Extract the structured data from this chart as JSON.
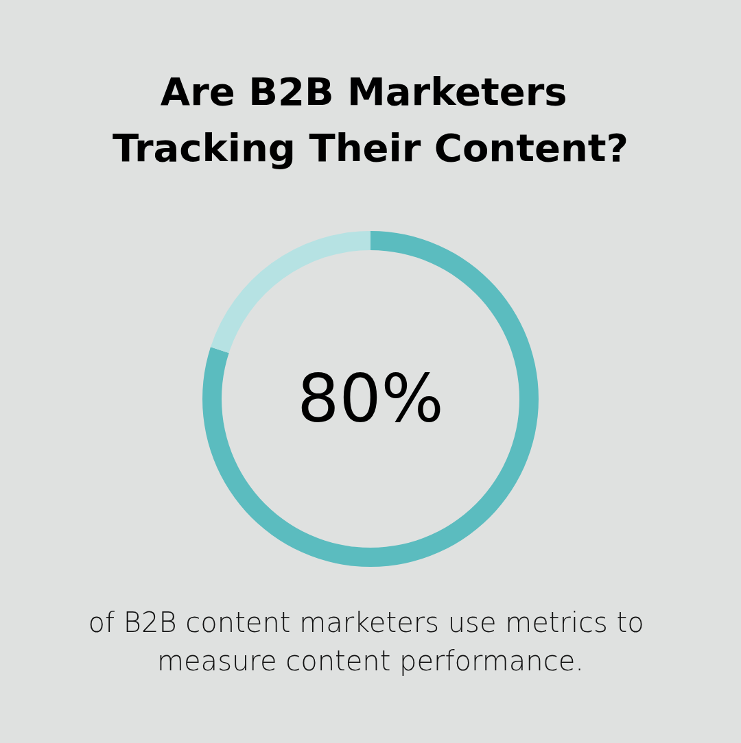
{
  "chart_data": {
    "type": "donut",
    "title": "Are B2B Marketers Tracking Their Content?",
    "categories": [
      null,
      null
    ],
    "values": [
      80,
      20
    ],
    "colors": [
      "#5bbcbf",
      "#b6e2e3"
    ],
    "value_labels": [
      "80%",
      null
    ],
    "annotations": [
      "of B2B content marketers use metrics to measure content performance."
    ]
  }
}
